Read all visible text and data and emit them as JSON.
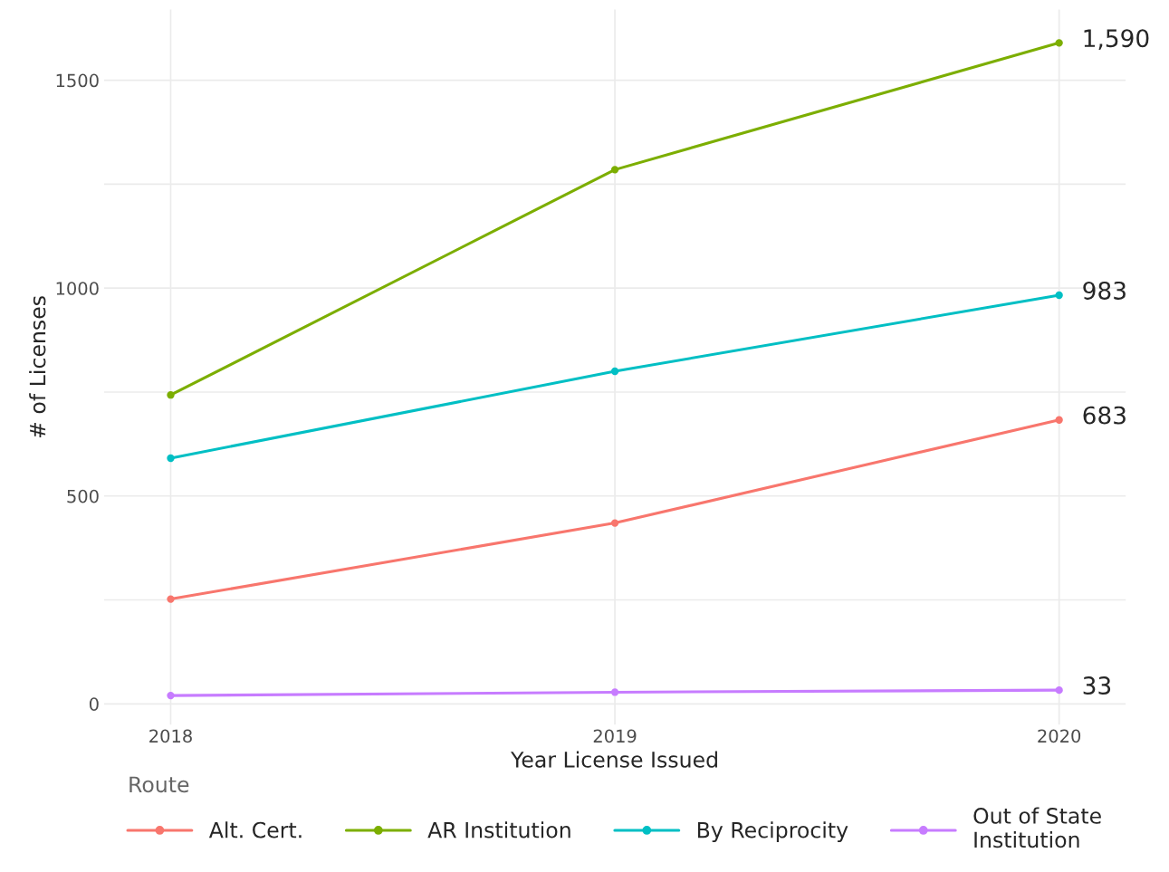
{
  "chart_data": {
    "type": "line",
    "xlabel": "Year License Issued",
    "ylabel": "# of Licenses",
    "legend_title": "Route",
    "x": [
      2018,
      2019,
      2020
    ],
    "series": [
      {
        "name": "Alt. Cert.",
        "color": "#f8766d",
        "values": [
          252,
          435,
          683
        ],
        "value_labels": [
          null,
          null,
          "683"
        ]
      },
      {
        "name": "AR Institution",
        "color": "#7cae00",
        "values": [
          743,
          1285,
          1590
        ],
        "value_labels": [
          null,
          null,
          "1,590"
        ]
      },
      {
        "name": "By Reciprocity",
        "color": "#00bfc4",
        "values": [
          591,
          800,
          983
        ],
        "value_labels": [
          null,
          null,
          "983"
        ]
      },
      {
        "name": "Out of State\nInstitution",
        "color": "#c77cff",
        "values": [
          20,
          28,
          33
        ],
        "value_labels": [
          null,
          null,
          "33"
        ]
      }
    ],
    "xlim": [
      2017.85,
      2020.15
    ],
    "xticks": [
      2018,
      2019,
      2020
    ],
    "ylim": [
      -50,
      1670
    ],
    "yticks": [
      0,
      {
        "value": 250,
        "label": null
      },
      500,
      {
        "value": 750,
        "label": null
      },
      1000,
      {
        "value": 1250,
        "label": null
      },
      1500
    ],
    "grid": true,
    "legend": "bottom",
    "marker": "circle",
    "line_style": "solid"
  }
}
